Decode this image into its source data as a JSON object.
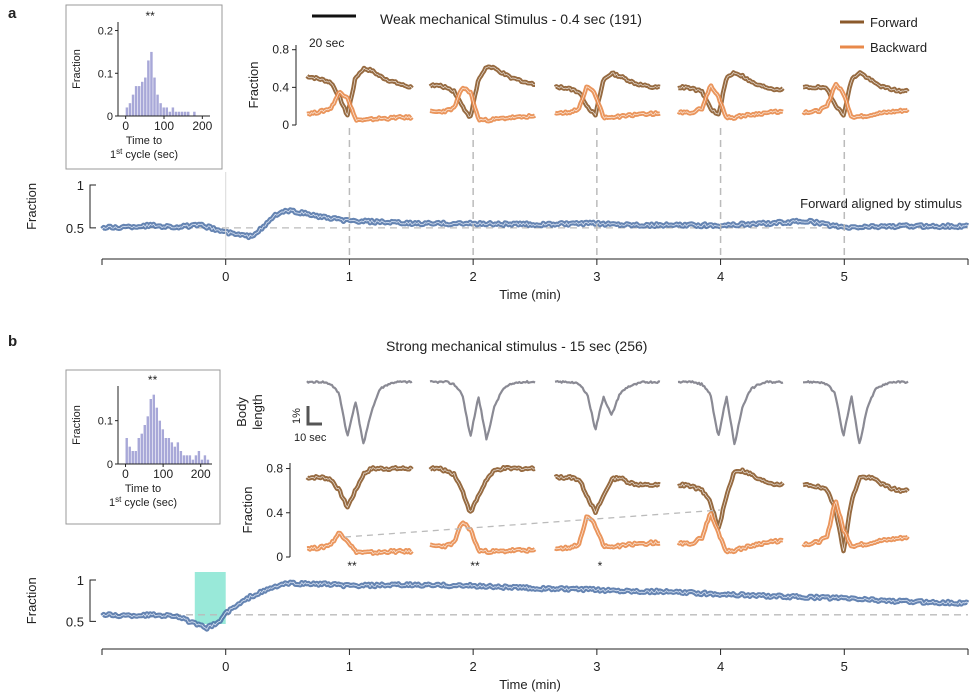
{
  "colors": {
    "forward": "#8B5A2B",
    "backward": "#E8894A",
    "aligned": "#4A6FA5",
    "body": "#8A8A94",
    "hist": "#A8A8D8",
    "stim_box": "#7FE3D0",
    "dashed": "#BBBBBB"
  },
  "panel_a": {
    "letter": "a",
    "title": "Weak mechanical Stimulus - 0.4 sec (191)",
    "scale_label": "20 sec",
    "legend": [
      {
        "label": "Forward",
        "color": "#8B5A2B"
      },
      {
        "label": "Backward",
        "color": "#E8894A"
      }
    ],
    "series_label": "Forward aligned by stimulus"
  },
  "panel_b": {
    "letter": "b",
    "title": "Strong mechanical stimulus - 15 sec (256)",
    "body_axis_label_1": "Body",
    "body_axis_label_2": "length",
    "scale_pct": "1%",
    "scale_time": "10 sec"
  },
  "chart_data": [
    {
      "id": "a_histogram",
      "type": "bar",
      "significance": "**",
      "ylabel": "Fraction",
      "xlabel": [
        "Time to",
        "1st cycle (sec)"
      ],
      "xticks": [
        "0",
        "100",
        "200"
      ],
      "yticks": [
        "0",
        "0.1",
        "0.2"
      ],
      "xlim": [
        -20,
        220
      ],
      "ylim": [
        0,
        0.22
      ],
      "bin_width": 8,
      "bin_starts": [
        0,
        8,
        16,
        24,
        32,
        40,
        48,
        56,
        64,
        72,
        80,
        88,
        96,
        104,
        112,
        120,
        128,
        136,
        144,
        152,
        160,
        168,
        176,
        184,
        192,
        200
      ],
      "values": [
        0.02,
        0.03,
        0.05,
        0.07,
        0.07,
        0.08,
        0.09,
        0.13,
        0.15,
        0.09,
        0.05,
        0.03,
        0.02,
        0.02,
        0.01,
        0.02,
        0.01,
        0.01,
        0.01,
        0.01,
        0.01,
        0.0,
        0.01,
        0.0,
        0.0,
        0.0
      ]
    },
    {
      "id": "a_forward_backward",
      "type": "line",
      "ylabel": "Fraction",
      "yticks": [
        "0",
        "0.4",
        "0.8"
      ],
      "ylim": [
        0,
        0.85
      ],
      "stim_min": [
        1,
        2,
        3,
        4,
        5
      ],
      "series": [
        {
          "name": "Forward",
          "values_per_stim": [
            [
              0.52,
              0.5,
              0.48,
              0.45,
              0.3,
              0.1,
              0.5,
              0.6,
              0.58,
              0.52,
              0.48,
              0.45,
              0.42,
              0.4
            ],
            [
              0.42,
              0.42,
              0.4,
              0.36,
              0.2,
              0.08,
              0.48,
              0.62,
              0.6,
              0.55,
              0.5,
              0.48,
              0.45,
              0.43
            ],
            [
              0.4,
              0.4,
              0.38,
              0.35,
              0.2,
              0.1,
              0.48,
              0.55,
              0.52,
              0.48,
              0.44,
              0.42,
              0.4,
              0.4
            ],
            [
              0.4,
              0.4,
              0.38,
              0.35,
              0.18,
              0.1,
              0.5,
              0.56,
              0.52,
              0.46,
              0.42,
              0.4,
              0.38,
              0.38
            ],
            [
              0.4,
              0.4,
              0.4,
              0.38,
              0.22,
              0.1,
              0.48,
              0.56,
              0.5,
              0.44,
              0.4,
              0.38,
              0.36,
              0.36
            ]
          ]
        },
        {
          "name": "Backward",
          "values_per_stim": [
            [
              0.12,
              0.13,
              0.15,
              0.18,
              0.35,
              0.3,
              0.06,
              0.05,
              0.06,
              0.07,
              0.07,
              0.08,
              0.08,
              0.08
            ],
            [
              0.14,
              0.14,
              0.15,
              0.18,
              0.4,
              0.35,
              0.06,
              0.05,
              0.06,
              0.07,
              0.08,
              0.08,
              0.09,
              0.09
            ],
            [
              0.13,
              0.13,
              0.14,
              0.18,
              0.42,
              0.32,
              0.08,
              0.08,
              0.09,
              0.1,
              0.11,
              0.12,
              0.12,
              0.13
            ],
            [
              0.13,
              0.13,
              0.14,
              0.18,
              0.42,
              0.3,
              0.08,
              0.08,
              0.1,
              0.11,
              0.12,
              0.13,
              0.14,
              0.14
            ],
            [
              0.14,
              0.14,
              0.15,
              0.2,
              0.44,
              0.34,
              0.09,
              0.09,
              0.1,
              0.12,
              0.13,
              0.14,
              0.15,
              0.16
            ]
          ]
        }
      ]
    },
    {
      "id": "a_aligned",
      "type": "line",
      "ylabel": "Fraction",
      "xlabel": "Time (min)",
      "xticks": [
        "0",
        "1",
        "2",
        "3",
        "4",
        "5"
      ],
      "yticks": [
        "0.5",
        "1"
      ],
      "xlim": [
        -1,
        6
      ],
      "ylim": [
        0.3,
        1.0
      ],
      "baseline": 0.5,
      "series": [
        {
          "name": "Forward aligned by stimulus",
          "x": [
            -1,
            -0.8,
            -0.6,
            -0.4,
            -0.2,
            0,
            0.1,
            0.2,
            0.3,
            0.4,
            0.5,
            0.6,
            0.8,
            1.0,
            1.2,
            1.5,
            2.0,
            2.5,
            3.0,
            3.5,
            4.0,
            4.5,
            4.7,
            5.0,
            5.3,
            5.6,
            6.0
          ],
          "values": [
            0.5,
            0.51,
            0.53,
            0.51,
            0.53,
            0.45,
            0.42,
            0.4,
            0.5,
            0.65,
            0.7,
            0.68,
            0.62,
            0.58,
            0.57,
            0.55,
            0.55,
            0.54,
            0.55,
            0.53,
            0.53,
            0.56,
            0.58,
            0.5,
            0.52,
            0.52,
            0.52
          ]
        }
      ]
    },
    {
      "id": "b_histogram",
      "type": "bar",
      "significance": "**",
      "ylabel": "Fraction",
      "xlabel": [
        "Time to",
        "1st cycle (sec)"
      ],
      "xticks": [
        "0",
        "100",
        "200"
      ],
      "yticks": [
        "0",
        "0.1"
      ],
      "xlim": [
        -20,
        230
      ],
      "ylim": [
        0,
        0.18
      ],
      "bin_width": 8,
      "bin_starts": [
        0,
        8,
        16,
        24,
        32,
        40,
        48,
        56,
        64,
        72,
        80,
        88,
        96,
        104,
        112,
        120,
        128,
        136,
        144,
        152,
        160,
        168,
        176,
        184,
        192,
        200,
        208,
        216
      ],
      "values": [
        0.06,
        0.04,
        0.03,
        0.03,
        0.06,
        0.07,
        0.09,
        0.11,
        0.15,
        0.16,
        0.13,
        0.1,
        0.08,
        0.06,
        0.06,
        0.05,
        0.04,
        0.05,
        0.03,
        0.02,
        0.02,
        0.02,
        0.01,
        0.02,
        0.03,
        0.01,
        0.02,
        0.01
      ]
    },
    {
      "id": "b_body_length",
      "type": "line",
      "ylabel": "Body length",
      "stim_min": [
        1,
        2,
        3,
        4,
        5
      ],
      "series": [
        {
          "name": "Body length",
          "values_per_stim": [
            [
              0,
              0,
              0,
              -0.1,
              -0.5,
              -2.3,
              -0.8,
              -2.6,
              -1.2,
              -0.3,
              -0.1,
              0,
              0,
              0
            ],
            [
              0,
              0,
              0,
              -0.1,
              -0.5,
              -2.3,
              -0.6,
              -2.4,
              -1.0,
              -0.3,
              -0.1,
              0,
              0,
              0
            ],
            [
              0,
              0,
              0,
              -0.1,
              -0.5,
              -2.0,
              -0.6,
              -1.4,
              -0.5,
              -0.2,
              -0.1,
              0,
              0,
              0
            ],
            [
              0,
              0,
              0,
              -0.1,
              -0.5,
              -2.3,
              -0.6,
              -2.6,
              -1.0,
              -0.3,
              -0.1,
              0,
              0,
              0
            ],
            [
              0,
              0,
              0,
              -0.1,
              -0.5,
              -2.3,
              -0.6,
              -2.6,
              -1.0,
              -0.3,
              -0.1,
              0,
              0,
              0
            ]
          ]
        }
      ]
    },
    {
      "id": "b_forward_backward",
      "type": "line",
      "ylabel": "Fraction",
      "yticks": [
        "0",
        "0.4",
        "0.8"
      ],
      "ylim": [
        0,
        0.85
      ],
      "stim_min": [
        1,
        2,
        3,
        4,
        5
      ],
      "significance_markers": [
        "**",
        "**",
        "*"
      ],
      "series": [
        {
          "name": "Forward",
          "values_per_stim": [
            [
              0.72,
              0.72,
              0.72,
              0.7,
              0.6,
              0.45,
              0.6,
              0.75,
              0.8,
              0.8,
              0.8,
              0.8,
              0.8,
              0.8
            ],
            [
              0.8,
              0.8,
              0.78,
              0.75,
              0.6,
              0.4,
              0.55,
              0.7,
              0.78,
              0.8,
              0.8,
              0.8,
              0.8,
              0.8
            ],
            [
              0.72,
              0.72,
              0.72,
              0.7,
              0.55,
              0.4,
              0.55,
              0.7,
              0.72,
              0.68,
              0.66,
              0.65,
              0.65,
              0.65
            ],
            [
              0.65,
              0.65,
              0.63,
              0.6,
              0.5,
              0.25,
              0.55,
              0.78,
              0.78,
              0.75,
              0.7,
              0.68,
              0.66,
              0.66
            ],
            [
              0.65,
              0.65,
              0.63,
              0.6,
              0.45,
              0.05,
              0.5,
              0.72,
              0.72,
              0.7,
              0.65,
              0.62,
              0.6,
              0.6
            ]
          ]
        },
        {
          "name": "Backward",
          "values_per_stim": [
            [
              0.08,
              0.08,
              0.09,
              0.12,
              0.22,
              0.15,
              0.05,
              0.04,
              0.04,
              0.04,
              0.05,
              0.05,
              0.05,
              0.05
            ],
            [
              0.1,
              0.1,
              0.1,
              0.13,
              0.32,
              0.25,
              0.06,
              0.05,
              0.05,
              0.05,
              0.06,
              0.06,
              0.06,
              0.06
            ],
            [
              0.08,
              0.08,
              0.09,
              0.12,
              0.38,
              0.28,
              0.1,
              0.09,
              0.1,
              0.11,
              0.12,
              0.12,
              0.13,
              0.13
            ],
            [
              0.12,
              0.12,
              0.13,
              0.18,
              0.4,
              0.22,
              0.05,
              0.06,
              0.08,
              0.1,
              0.12,
              0.13,
              0.14,
              0.15
            ],
            [
              0.12,
              0.12,
              0.14,
              0.18,
              0.52,
              0.25,
              0.1,
              0.11,
              0.12,
              0.14,
              0.15,
              0.16,
              0.17,
              0.18
            ]
          ]
        }
      ]
    },
    {
      "id": "b_aligned",
      "type": "line",
      "ylabel": "Fraction",
      "xlabel": "Time (min)",
      "xticks": [
        "0",
        "1",
        "2",
        "3",
        "4",
        "5"
      ],
      "yticks": [
        "0.5",
        "1"
      ],
      "xlim": [
        -1,
        6
      ],
      "ylim": [
        0.3,
        1.0
      ],
      "baseline": 0.58,
      "stimulus_window": [
        -0.25,
        0
      ],
      "series": [
        {
          "name": "Forward",
          "x": [
            -1,
            -0.8,
            -0.6,
            -0.4,
            -0.25,
            -0.15,
            -0.05,
            0,
            0.2,
            0.4,
            0.5,
            0.8,
            1.0,
            1.5,
            2.0,
            2.5,
            3.0,
            3.5,
            4.0,
            4.5,
            5.0,
            5.5,
            6.0
          ],
          "values": [
            0.58,
            0.57,
            0.58,
            0.57,
            0.47,
            0.42,
            0.5,
            0.6,
            0.8,
            0.92,
            0.96,
            0.95,
            0.93,
            0.94,
            0.93,
            0.9,
            0.88,
            0.86,
            0.83,
            0.8,
            0.78,
            0.74,
            0.72
          ]
        }
      ]
    }
  ]
}
